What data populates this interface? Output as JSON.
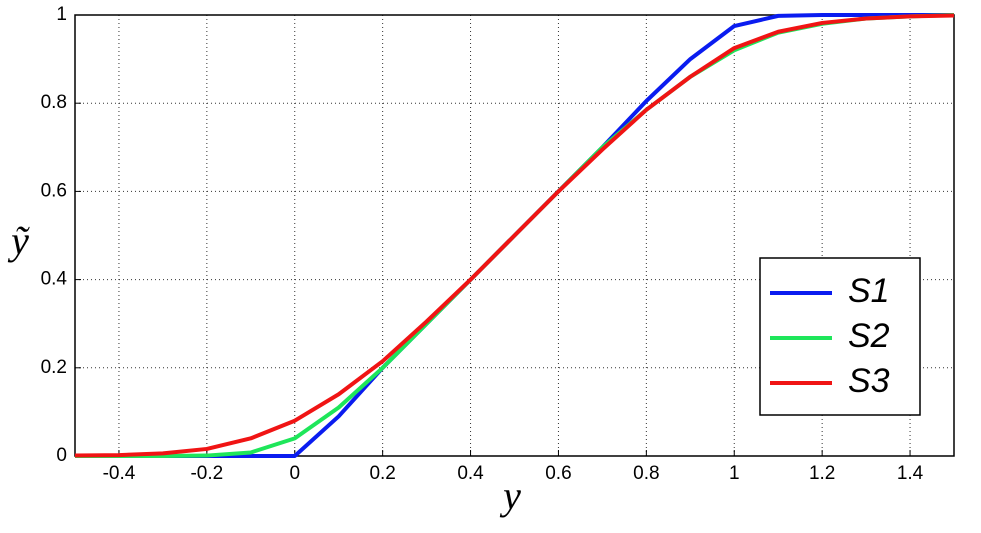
{
  "chart_data": {
    "type": "line",
    "x_label": "y",
    "y_label": "ỹ",
    "x": [
      -0.5,
      -0.4,
      -0.3,
      -0.2,
      -0.1,
      0,
      0.1,
      0.2,
      0.3,
      0.4,
      0.5,
      0.6,
      0.7,
      0.8,
      0.9,
      1.0,
      1.1,
      1.2,
      1.3,
      1.4,
      1.5
    ],
    "series": [
      {
        "name": "S1",
        "color": "#0a1cf0",
        "values": [
          0,
          0,
          0,
          0,
          0,
          0,
          0.09,
          0.2,
          0.3,
          0.4,
          0.5,
          0.6,
          0.7,
          0.805,
          0.9,
          0.975,
          0.998,
          1,
          1,
          1,
          1
        ]
      },
      {
        "name": "S2",
        "color": "#1ee65a",
        "values": [
          0,
          0,
          0,
          0.001,
          0.008,
          0.04,
          0.11,
          0.2,
          0.3,
          0.4,
          0.5,
          0.6,
          0.7,
          0.785,
          0.86,
          0.92,
          0.96,
          0.98,
          0.992,
          0.997,
          1
        ]
      },
      {
        "name": "S3",
        "color": "#f01414",
        "values": [
          0.001,
          0.002,
          0.006,
          0.016,
          0.04,
          0.08,
          0.14,
          0.215,
          0.305,
          0.4,
          0.5,
          0.6,
          0.695,
          0.785,
          0.86,
          0.925,
          0.962,
          0.982,
          0.992,
          0.997,
          0.999
        ]
      }
    ],
    "xlim": [
      -0.5,
      1.5
    ],
    "xticks": [
      -0.4,
      -0.2,
      0,
      0.2,
      0.4,
      0.6,
      0.8,
      1,
      1.2,
      1.4
    ],
    "ylim": [
      0,
      1
    ],
    "yticks": [
      0,
      0.2,
      0.4,
      0.6,
      0.8,
      1
    ],
    "grid": true,
    "legend": "lower right"
  }
}
